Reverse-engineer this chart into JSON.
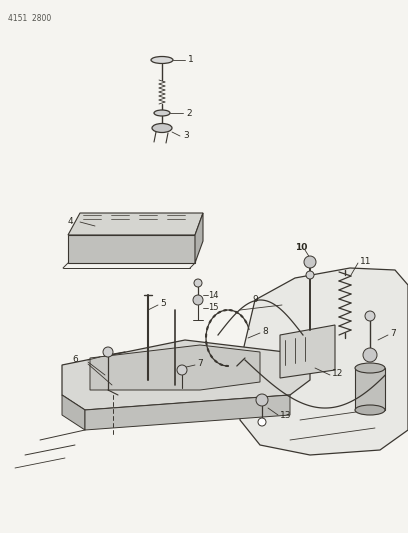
{
  "bg_color": "#f5f4f0",
  "line_color": "#3a3630",
  "text_color": "#2a2820",
  "header_text": "4151  2800",
  "fig_width": 4.08,
  "fig_height": 5.33,
  "dpi": 100
}
